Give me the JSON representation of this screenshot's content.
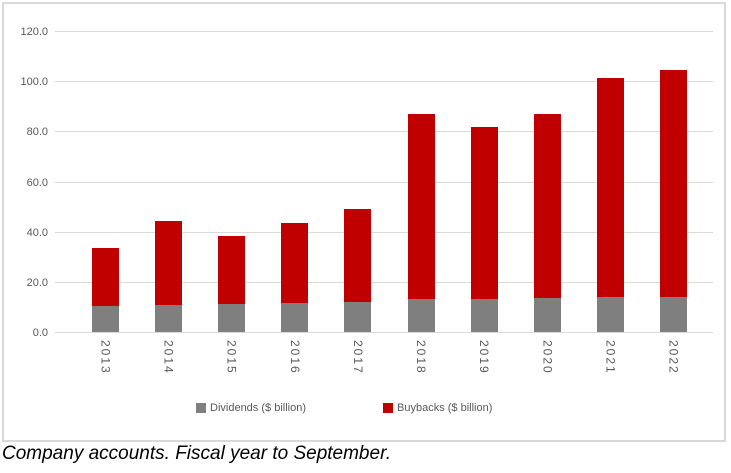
{
  "chart_data": {
    "type": "bar",
    "stacked": true,
    "title": "",
    "xlabel": "",
    "ylabel": "",
    "categories": [
      "2013",
      "2014",
      "2015",
      "2016",
      "2017",
      "2018",
      "2019",
      "2020",
      "2021",
      "2022"
    ],
    "series": [
      {
        "name": "Dividends ($ billion)",
        "color": "#7f7f7f",
        "values": [
          10.2,
          10.6,
          11.1,
          11.7,
          12.1,
          13.0,
          13.1,
          13.7,
          14.0,
          14.1
        ]
      },
      {
        "name": "Buybacks ($ billion)",
        "color": "#c00000",
        "values": [
          23.3,
          33.6,
          27.1,
          31.9,
          36.8,
          74.0,
          68.7,
          73.2,
          87.2,
          90.4
        ]
      }
    ],
    "ylim": [
      0,
      120
    ],
    "ytick_step": 20,
    "ytick_labels": [
      "0.0",
      "20.0",
      "40.0",
      "60.0",
      "80.0",
      "100.0",
      "120.0"
    ],
    "grid": true,
    "legend_position": "bottom"
  },
  "colors": {
    "gridline": "#d9d9d9",
    "frame_border": "#d9d9d9",
    "axis_text": "#595959",
    "caption_text": "#000000",
    "background": "#ffffff"
  },
  "caption": "Company accounts. Fiscal year to September."
}
